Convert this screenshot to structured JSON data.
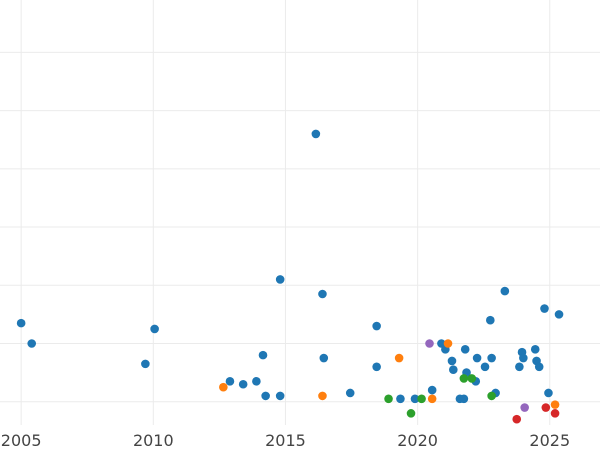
{
  "chart_data": {
    "type": "scatter",
    "title": "",
    "xlabel": "",
    "ylabel": "",
    "xlim": [
      2004.2,
      2026.9
    ],
    "ylim": [
      -0.4,
      6.9
    ],
    "grid": true,
    "x_ticks": [
      {
        "value": 2005,
        "label": "2005"
      },
      {
        "value": 2010,
        "label": "2010"
      },
      {
        "value": 2015,
        "label": "2015"
      },
      {
        "value": 2020,
        "label": "2020"
      },
      {
        "value": 2025,
        "label": "2025"
      }
    ],
    "y_gridlines": [
      0,
      1,
      2,
      3,
      4,
      5,
      6
    ],
    "series": [
      {
        "color": "#1f77b4",
        "points": [
          [
            2005.0,
            1.35
          ],
          [
            2005.4,
            1.0
          ],
          [
            2009.7,
            0.65
          ],
          [
            2010.05,
            1.25
          ],
          [
            2012.9,
            0.35
          ],
          [
            2013.4,
            0.3
          ],
          [
            2013.9,
            0.35
          ],
          [
            2014.15,
            0.8
          ],
          [
            2014.25,
            0.1
          ],
          [
            2014.8,
            0.1
          ],
          [
            2014.8,
            2.1
          ],
          [
            2016.15,
            4.6
          ],
          [
            2016.4,
            1.85
          ],
          [
            2016.45,
            0.75
          ],
          [
            2017.45,
            0.15
          ],
          [
            2018.45,
            1.3
          ],
          [
            2018.45,
            0.6
          ],
          [
            2019.35,
            0.05
          ],
          [
            2019.9,
            0.05
          ],
          [
            2020.55,
            0.2
          ],
          [
            2020.9,
            1.0
          ],
          [
            2021.05,
            0.9
          ],
          [
            2021.3,
            0.7
          ],
          [
            2021.35,
            0.55
          ],
          [
            2021.6,
            0.05
          ],
          [
            2021.75,
            0.05
          ],
          [
            2021.85,
            0.5
          ],
          [
            2022.2,
            0.35
          ],
          [
            2022.25,
            0.75
          ],
          [
            2022.55,
            0.6
          ],
          [
            2022.75,
            1.4
          ],
          [
            2022.8,
            0.75
          ],
          [
            2022.95,
            0.15
          ],
          [
            2023.3,
            1.9
          ],
          [
            2023.85,
            0.6
          ],
          [
            2023.95,
            0.85
          ],
          [
            2024.0,
            0.75
          ],
          [
            2024.45,
            0.9
          ],
          [
            2024.5,
            0.7
          ],
          [
            2024.6,
            0.6
          ],
          [
            2024.8,
            1.6
          ],
          [
            2024.95,
            0.15
          ],
          [
            2025.35,
            1.5
          ],
          [
            2021.8,
            0.9
          ]
        ]
      },
      {
        "color": "#ff7f0e",
        "points": [
          [
            2012.65,
            0.25
          ],
          [
            2016.4,
            0.1
          ],
          [
            2019.3,
            0.75
          ],
          [
            2020.55,
            0.05
          ],
          [
            2021.15,
            1.0
          ],
          [
            2025.2,
            -0.05
          ]
        ]
      },
      {
        "color": "#2ca02c",
        "points": [
          [
            2018.9,
            0.05
          ],
          [
            2019.75,
            -0.2
          ],
          [
            2020.15,
            0.05
          ],
          [
            2021.75,
            0.4
          ],
          [
            2022.05,
            0.4
          ],
          [
            2022.8,
            0.1
          ]
        ]
      },
      {
        "color": "#d62728",
        "points": [
          [
            2023.75,
            -0.3
          ],
          [
            2024.85,
            -0.1
          ],
          [
            2025.2,
            -0.2
          ]
        ]
      },
      {
        "color": "#9467bd",
        "points": [
          [
            2020.45,
            1.0
          ],
          [
            2024.05,
            -0.1
          ]
        ]
      }
    ]
  }
}
